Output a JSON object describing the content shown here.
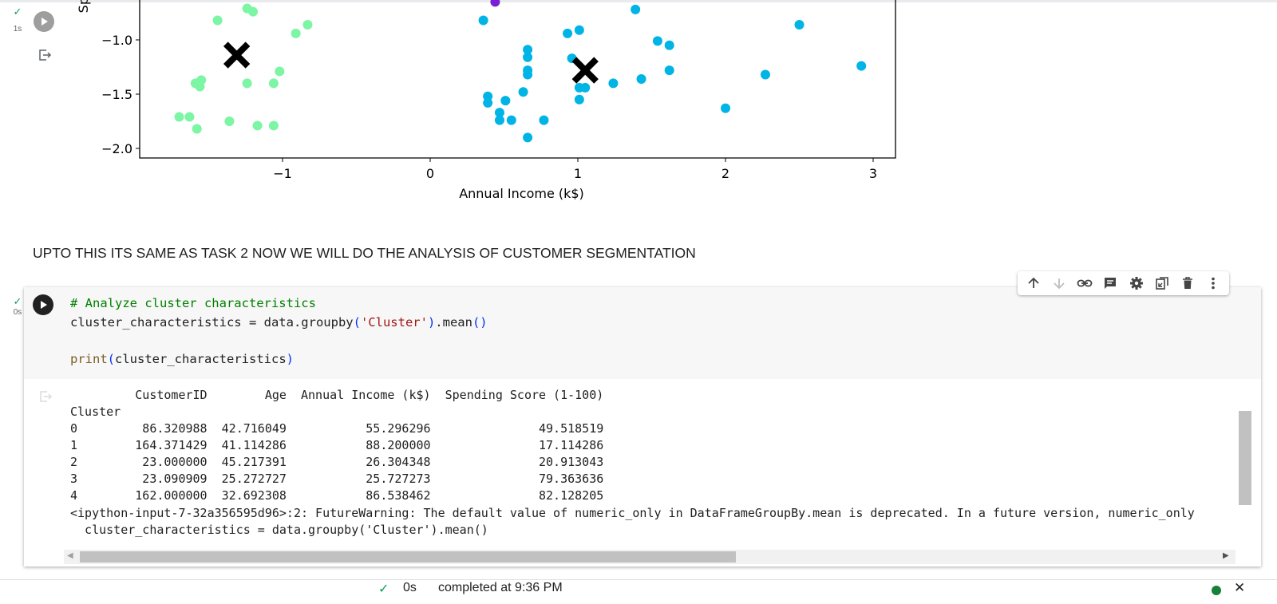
{
  "top_cell": {
    "status_check": "✓",
    "exec_time": "1s",
    "icons": [
      "run-icon",
      "output-icon"
    ]
  },
  "chart_data": {
    "type": "scatter",
    "xlabel": "Annual Income (k$)",
    "ylabel": "Sp",
    "xlim": [
      -1.98,
      3.15
    ],
    "ylim": [
      -2.1,
      -0.65
    ],
    "xticks": [
      -1,
      0,
      1,
      2,
      3
    ],
    "yticks": [
      -1.0,
      -1.5,
      -2.0
    ],
    "xtick_labels": [
      "−1",
      "0",
      "1",
      "2",
      "3"
    ],
    "ytick_labels": [
      "−1.0",
      "−1.5",
      "−2.0"
    ],
    "colors": {
      "green": "#7cf5a4",
      "blue": "#00b4e6",
      "purple": "#7a1fd6",
      "centroid": "#000000"
    },
    "green_points": [
      [
        -1.44,
        -0.82
      ],
      [
        -1.24,
        -0.71
      ],
      [
        -1.2,
        -0.74
      ],
      [
        -0.91,
        -0.94
      ],
      [
        -0.83,
        -0.86
      ],
      [
        -1.02,
        -1.29
      ],
      [
        -1.06,
        -1.4
      ],
      [
        -1.24,
        -1.4
      ],
      [
        -1.55,
        -1.37
      ],
      [
        -1.56,
        -1.43
      ],
      [
        -1.59,
        -1.4
      ],
      [
        -1.7,
        -1.71
      ],
      [
        -1.63,
        -1.71
      ],
      [
        -1.58,
        -1.82
      ],
      [
        -1.36,
        -1.75
      ],
      [
        -1.17,
        -1.79
      ],
      [
        -1.06,
        -1.79
      ]
    ],
    "blue_points": [
      [
        0.36,
        -0.82
      ],
      [
        1.39,
        -0.72
      ],
      [
        0.93,
        -0.94
      ],
      [
        1.01,
        -0.91
      ],
      [
        1.54,
        -1.01
      ],
      [
        1.62,
        -1.05
      ],
      [
        2.5,
        -0.86
      ],
      [
        0.66,
        -1.09
      ],
      [
        0.66,
        -1.16
      ],
      [
        0.96,
        -1.17
      ],
      [
        0.66,
        -1.28
      ],
      [
        0.66,
        -1.32
      ],
      [
        1.62,
        -1.28
      ],
      [
        2.92,
        -1.24
      ],
      [
        2.27,
        -1.32
      ],
      [
        1.43,
        -1.36
      ],
      [
        1.24,
        -1.4
      ],
      [
        1.01,
        -1.44
      ],
      [
        1.05,
        -1.44
      ],
      [
        0.39,
        -1.52
      ],
      [
        0.63,
        -1.48
      ],
      [
        0.39,
        -1.58
      ],
      [
        0.51,
        -1.56
      ],
      [
        1.01,
        -1.55
      ],
      [
        0.47,
        -1.67
      ],
      [
        0.47,
        -1.74
      ],
      [
        0.55,
        -1.74
      ],
      [
        0.77,
        -1.74
      ],
      [
        2.0,
        -1.63
      ],
      [
        0.66,
        -1.9
      ]
    ],
    "purple_points": [
      [
        0.44,
        -0.65
      ]
    ],
    "centroids": [
      [
        -1.31,
        -1.14
      ],
      [
        1.05,
        -1.28
      ]
    ]
  },
  "markdown_text": "UPTO THIS ITS SAME AS TASK 2 NOW WE WILL DO THE ANALYSIS OF CUSTOMER SEGMENTATION",
  "code_cell": {
    "status_check": "✓",
    "exec_time": "0s",
    "code": {
      "comment": "# Analyze cluster characteristics",
      "line2_a": "cluster_characteristics = data.groupby",
      "line2_p1": "(",
      "line2_str": "'Cluster'",
      "line2_p2": ")",
      "line2_b": ".mean",
      "line2_p3": "()",
      "line4_fn": "print",
      "line4_p1": "(",
      "line4_arg": "cluster_characteristics",
      "line4_p2": ")"
    },
    "output_lines": [
      "         CustomerID        Age  Annual Income (k$)  Spending Score (1-100)",
      "Cluster",
      "0         86.320988  42.716049           55.296296               49.518519",
      "1        164.371429  41.114286           88.200000               17.114286",
      "2         23.000000  45.217391           26.304348               20.913043",
      "3         23.090909  25.272727           25.727273               79.363636",
      "4        162.000000  32.692308           86.538462               82.128205",
      "<ipython-input-7-32a356595d96>:2: FutureWarning: The default value of numeric_only in DataFrameGroupBy.mean is deprecated. In a future version, numeric_only",
      "  cluster_characteristics = data.groupby('Cluster').mean()"
    ]
  },
  "cell_toolbar": {
    "icons": [
      "arrow-up-icon",
      "arrow-down-icon",
      "link-icon",
      "comment-icon",
      "gear-icon",
      "mirror-cell-icon",
      "trash-icon",
      "more-vert-icon"
    ]
  },
  "status_bar": {
    "check": "✓",
    "time": "0s",
    "message": "completed at 9:36 PM",
    "close": "✕"
  }
}
